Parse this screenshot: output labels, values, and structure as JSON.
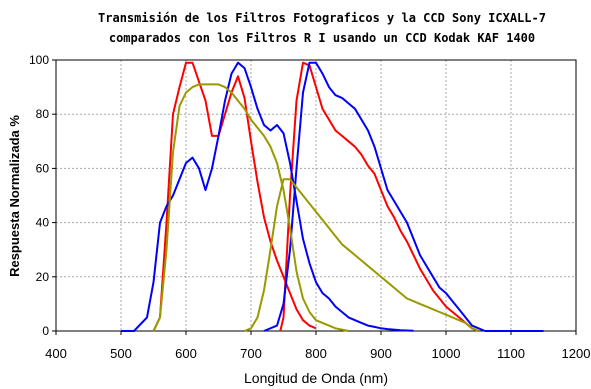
{
  "chart_data": {
    "type": "line",
    "title_lines": [
      "Transmisión de los Filtros Fotograficos y la CCD Sony ICXALL-7",
      "comparados con los Filtros R I usando un CCD Kodak KAF 1400"
    ],
    "xlabel": "Longitud de Onda (nm)",
    "ylabel": "Respuesta Normalizada %",
    "xlim": [
      400,
      1200
    ],
    "ylim": [
      0,
      100
    ],
    "xticks": [
      "400",
      "500",
      "600",
      "700",
      "800",
      "900",
      "1000",
      "1100",
      "1200"
    ],
    "yticks": [
      "0",
      "20",
      "40",
      "60",
      "80",
      "100"
    ],
    "grid": true,
    "series": [
      {
        "color": "#ff0000",
        "x": [
          550,
          560,
          570,
          580,
          590,
          600,
          610,
          620,
          630,
          640,
          650,
          660,
          670,
          680,
          690,
          700,
          710,
          720,
          730,
          740,
          750,
          760,
          770,
          780,
          790,
          800
        ],
        "y": [
          0,
          5,
          40,
          80,
          90,
          99,
          99,
          92,
          85,
          72,
          72,
          80,
          88,
          94,
          86,
          70,
          55,
          42,
          33,
          26,
          20,
          14,
          8,
          4,
          2,
          1
        ]
      },
      {
        "color": "#ff0000",
        "x": [
          745,
          750,
          760,
          770,
          780,
          790,
          800,
          810,
          820,
          830,
          840,
          850,
          860,
          870,
          880,
          890,
          900,
          910,
          920,
          930,
          940,
          950,
          960,
          970,
          980,
          990,
          1000,
          1010,
          1020,
          1030,
          1040,
          1050
        ],
        "y": [
          0,
          5,
          50,
          85,
          99,
          98,
          90,
          82,
          78,
          74,
          72,
          70,
          68,
          65,
          61,
          58,
          52,
          46,
          42,
          37,
          33,
          28,
          23,
          19,
          15,
          12,
          9,
          7,
          5,
          3,
          1,
          0
        ]
      },
      {
        "color": "#0000ff",
        "x": [
          500,
          520,
          540,
          550,
          560,
          570,
          580,
          590,
          600,
          610,
          620,
          630,
          640,
          650,
          660,
          670,
          680,
          690,
          700,
          710,
          720,
          730,
          740,
          750,
          760,
          770,
          780,
          790,
          800,
          810,
          820,
          830,
          840,
          850,
          860,
          870,
          880,
          890,
          900,
          910,
          920,
          930,
          940,
          950
        ],
        "y": [
          0,
          0,
          5,
          18,
          40,
          46,
          50,
          56,
          62,
          64,
          60,
          52,
          60,
          72,
          85,
          95,
          99,
          97,
          90,
          82,
          76,
          74,
          76,
          73,
          62,
          48,
          34,
          25,
          18,
          14,
          12,
          9,
          7,
          5,
          4,
          3,
          2,
          1.5,
          1,
          0.7,
          0.5,
          0.3,
          0.2,
          0.1
        ]
      },
      {
        "color": "#0000ff",
        "x": [
          720,
          740,
          750,
          760,
          770,
          780,
          790,
          800,
          810,
          820,
          830,
          840,
          850,
          860,
          870,
          880,
          890,
          900,
          910,
          920,
          930,
          940,
          950,
          960,
          970,
          980,
          990,
          1000,
          1010,
          1020,
          1030,
          1040,
          1050,
          1060,
          1100,
          1150
        ],
        "y": [
          0,
          2,
          10,
          30,
          60,
          88,
          99,
          99,
          95,
          90,
          87,
          86,
          84,
          82,
          78,
          74,
          68,
          60,
          52,
          48,
          44,
          40,
          34,
          28,
          24,
          20,
          16,
          14,
          11,
          8,
          5,
          2,
          1,
          0,
          0,
          0
        ]
      },
      {
        "color": "#999900",
        "x": [
          550,
          560,
          570,
          580,
          590,
          600,
          610,
          620,
          630,
          640,
          650,
          660,
          670,
          680,
          690,
          700,
          710,
          720,
          730,
          740,
          750,
          760,
          770,
          780,
          790,
          800,
          810,
          820,
          830,
          840,
          850
        ],
        "y": [
          0,
          5,
          30,
          66,
          83,
          88,
          90,
          91,
          91,
          91,
          91,
          90,
          88,
          85,
          82,
          78,
          75,
          72,
          68,
          62,
          52,
          38,
          22,
          12,
          7,
          4,
          3,
          2,
          1,
          0.5,
          0
        ]
      },
      {
        "color": "#999900",
        "x": [
          690,
          700,
          710,
          720,
          730,
          740,
          750,
          760,
          770,
          780,
          790,
          800,
          810,
          820,
          830,
          840,
          850,
          860,
          870,
          880,
          890,
          900,
          910,
          920,
          930,
          940,
          950,
          960,
          970,
          980,
          990,
          1000,
          1010,
          1020,
          1030,
          1040,
          1050
        ],
        "y": [
          0,
          1,
          5,
          15,
          30,
          46,
          56,
          56,
          53,
          50,
          47,
          44,
          41,
          38,
          35,
          32,
          30,
          28,
          26,
          24,
          22,
          20,
          18,
          16,
          14,
          12,
          11,
          10,
          9,
          8,
          7,
          6,
          5,
          4,
          3,
          1,
          0
        ]
      }
    ]
  }
}
